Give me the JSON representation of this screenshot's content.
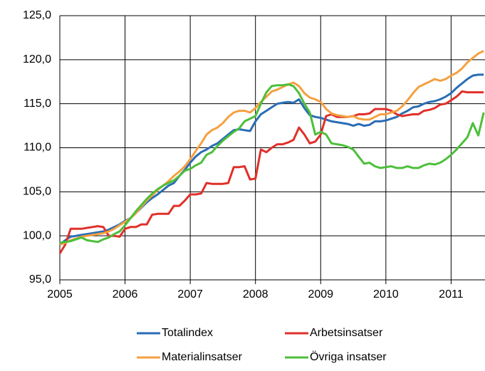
{
  "chart_data": {
    "type": "line",
    "x": [
      2005,
      2005.083,
      2005.167,
      2005.25,
      2005.333,
      2005.417,
      2005.5,
      2005.583,
      2005.667,
      2005.75,
      2005.833,
      2005.917,
      2006,
      2006.083,
      2006.167,
      2006.25,
      2006.333,
      2006.417,
      2006.5,
      2006.583,
      2006.667,
      2006.75,
      2006.833,
      2006.917,
      2007,
      2007.083,
      2007.167,
      2007.25,
      2007.333,
      2007.417,
      2007.5,
      2007.583,
      2007.667,
      2007.75,
      2007.833,
      2007.917,
      2008,
      2008.083,
      2008.167,
      2008.25,
      2008.333,
      2008.417,
      2008.5,
      2008.583,
      2008.667,
      2008.75,
      2008.833,
      2008.917,
      2009,
      2009.083,
      2009.167,
      2009.25,
      2009.333,
      2009.417,
      2009.5,
      2009.583,
      2009.667,
      2009.75,
      2009.833,
      2009.917,
      2010,
      2010.083,
      2010.167,
      2010.25,
      2010.333,
      2010.417,
      2010.5,
      2010.583,
      2010.667,
      2010.75,
      2010.833,
      2010.917,
      2011,
      2011.083,
      2011.167,
      2011.25,
      2011.333,
      2011.417,
      2011.5
    ],
    "series": [
      {
        "name": "Totalindex",
        "color": "#2a6db5",
        "values": [
          99.0,
          99.5,
          99.9,
          100.0,
          100.1,
          100.2,
          100.3,
          100.4,
          100.5,
          100.7,
          101.0,
          101.3,
          101.7,
          102.0,
          102.6,
          103.2,
          103.8,
          104.3,
          104.7,
          105.2,
          105.7,
          106.0,
          106.8,
          107.5,
          108.3,
          109.0,
          109.5,
          109.8,
          110.2,
          110.5,
          111.0,
          111.5,
          112.0,
          112.1,
          112.0,
          111.9,
          113.0,
          113.8,
          114.2,
          114.6,
          115.0,
          115.1,
          115.2,
          115.1,
          115.5,
          114.5,
          113.7,
          113.5,
          113.4,
          113.2,
          113.0,
          112.9,
          112.8,
          112.7,
          112.5,
          112.7,
          112.5,
          112.6,
          113.0,
          113.0,
          113.1,
          113.3,
          113.5,
          113.9,
          114.2,
          114.6,
          114.7,
          115.0,
          115.2,
          115.3,
          115.5,
          115.8,
          116.2,
          116.8,
          117.3,
          117.8,
          118.2,
          118.3,
          118.3
        ]
      },
      {
        "name": "Arbetsinsatser",
        "color": "#e0302a",
        "values": [
          98.0,
          99.0,
          100.8,
          100.8,
          100.8,
          100.9,
          101.0,
          101.1,
          101.0,
          100.0,
          100.0,
          99.9,
          100.8,
          101.0,
          101.0,
          101.3,
          101.3,
          102.4,
          102.5,
          102.5,
          102.5,
          103.4,
          103.4,
          104.0,
          104.7,
          104.7,
          104.8,
          106.0,
          105.9,
          105.9,
          105.9,
          106.0,
          107.8,
          107.8,
          107.9,
          106.4,
          106.5,
          109.8,
          109.5,
          110.0,
          110.4,
          110.4,
          110.6,
          110.9,
          112.3,
          111.5,
          110.5,
          110.7,
          111.5,
          113.6,
          113.8,
          113.5,
          113.5,
          113.5,
          113.6,
          113.8,
          113.8,
          113.9,
          114.4,
          114.4,
          114.4,
          114.2,
          113.8,
          113.6,
          113.7,
          113.8,
          113.8,
          114.2,
          114.3,
          114.5,
          114.9,
          115.0,
          115.4,
          115.8,
          116.4,
          116.3,
          116.3,
          116.3,
          116.3
        ]
      },
      {
        "name": "Materialinsatser",
        "color": "#f5a040",
        "values": [
          99.0,
          99.2,
          99.5,
          99.7,
          99.9,
          100.0,
          100.1,
          100.2,
          100.3,
          100.5,
          100.8,
          101.2,
          101.6,
          102.0,
          102.6,
          103.3,
          104.0,
          104.6,
          105.2,
          105.7,
          106.2,
          106.8,
          107.3,
          107.9,
          108.7,
          109.6,
          110.5,
          111.5,
          112.0,
          112.3,
          112.8,
          113.5,
          114.0,
          114.2,
          114.2,
          114.0,
          114.5,
          115.2,
          115.8,
          116.4,
          116.6,
          116.9,
          117.2,
          117.4,
          117.0,
          116.2,
          115.7,
          115.5,
          115.2,
          114.4,
          113.9,
          113.7,
          113.6,
          113.5,
          113.6,
          113.3,
          113.2,
          113.2,
          113.5,
          113.8,
          113.8,
          114.0,
          114.2,
          114.7,
          115.4,
          116.2,
          116.9,
          117.2,
          117.5,
          117.8,
          117.6,
          117.8,
          118.2,
          118.5,
          119.0,
          119.7,
          120.2,
          120.7,
          121.0
        ]
      },
      {
        "name": "Övriga insatser",
        "color": "#4cbf3a",
        "values": [
          99.2,
          99.3,
          99.4,
          99.6,
          99.8,
          99.5,
          99.4,
          99.3,
          99.6,
          99.8,
          100.2,
          100.5,
          101.2,
          102.0,
          102.8,
          103.5,
          104.2,
          104.8,
          105.3,
          105.7,
          106.0,
          106.3,
          106.8,
          107.4,
          107.6,
          108.0,
          108.3,
          109.2,
          109.5,
          110.2,
          110.8,
          111.3,
          111.8,
          112.2,
          113.0,
          113.3,
          113.6,
          115.0,
          116.3,
          117.0,
          117.1,
          117.1,
          117.2,
          117.0,
          116.2,
          115.0,
          114.0,
          111.5,
          111.8,
          111.5,
          110.5,
          110.4,
          110.3,
          110.1,
          109.8,
          109.0,
          108.2,
          108.3,
          107.9,
          107.7,
          107.8,
          107.9,
          107.7,
          107.7,
          107.9,
          107.7,
          107.7,
          108.0,
          108.2,
          108.1,
          108.3,
          108.7,
          109.2,
          109.8,
          110.5,
          111.2,
          112.8,
          111.4,
          114.0
        ]
      }
    ],
    "xlim": [
      2005,
      2011.52
    ],
    "xticks": [
      2005,
      2006,
      2007,
      2008,
      2009,
      2010,
      2011
    ],
    "ylim": [
      95,
      125
    ],
    "yticks": [
      {
        "value": 95,
        "label": "95,0"
      },
      {
        "value": 100,
        "label": "100,0"
      },
      {
        "value": 105,
        "label": "105,0"
      },
      {
        "value": 110,
        "label": "110,0"
      },
      {
        "value": 115,
        "label": "115,0"
      },
      {
        "value": 120,
        "label": "120,0"
      },
      {
        "value": 125,
        "label": "125,0"
      }
    ],
    "grid": true
  }
}
